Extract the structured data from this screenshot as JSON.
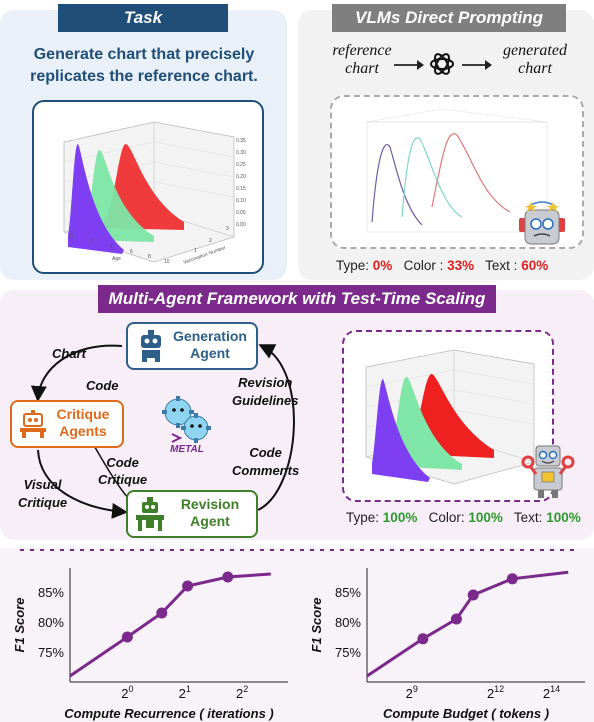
{
  "task": {
    "header": "Task",
    "description_line1": "Generate chart that precisely",
    "description_line2": "replicates the reference chart.",
    "chart_ylabel": "Vaccination Number",
    "chart_xlabel": "Age",
    "chart_zticks": [
      "0.35",
      "0.30",
      "0.25",
      "0.20",
      "0.15",
      "0.10",
      "0.05",
      "0.00"
    ],
    "chart_xticks": [
      "0",
      "2",
      "4",
      "6",
      "8",
      "10"
    ],
    "chart_yticks": [
      "1",
      "2",
      "3"
    ]
  },
  "vlm": {
    "header": "VLMs Direct Prompting",
    "reference_label_line1": "reference",
    "reference_label_line2": "chart",
    "generated_label_line1": "generated",
    "generated_label_line2": "chart",
    "type_label": "Type:",
    "type_value": "0%",
    "color_label": "Color :",
    "color_value": "33%",
    "text_label": "Text :",
    "text_value": "60%"
  },
  "metal": {
    "header": "Multi-Agent Framework with Test-Time Scaling",
    "generation_agent_line1": "Generation",
    "generation_agent_line2": "Agent",
    "critique_agents_line1": "Critique",
    "critique_agents_line2": "Agents",
    "revision_agent_line1": "Revision",
    "revision_agent_line2": "Agent",
    "center_label": "METAL",
    "edge_chart": "Chart",
    "edge_code": "Code",
    "edge_revision_line1": "Revision",
    "edge_revision_line2": "Guidelines",
    "edge_code_critique_line1": "Code",
    "edge_code_critique_line2": "Critique",
    "edge_visual_critique_line1": "Visual",
    "edge_visual_critique_line2": "Critique",
    "edge_code_comments_line1": "Code",
    "edge_code_comments_line2": "Comments",
    "type_label": "Type:",
    "type_value": "100%",
    "color_label": "Color:",
    "color_value": "100%",
    "text_label": "Text:",
    "text_value": "100%"
  },
  "colors": {
    "task_header": "#1f4e79",
    "vlm_header": "#7f7f7f",
    "metal_header": "#7b2a8c",
    "line": "#7b2a8c",
    "generation_border": "#2e5f8a",
    "critique_border": "#e06a1b",
    "revision_border": "#3f7f2a"
  },
  "chart_data": [
    {
      "type": "line",
      "ylabel": "F1 Score",
      "xlabel": "Compute Recurrence ( iterations )",
      "xticks": [
        "2^0",
        "2^1",
        "2^2"
      ],
      "yticks": [
        "75%",
        "80%",
        "85%"
      ],
      "x_log2": [
        -1,
        0,
        0.6,
        1.05,
        1.75,
        2.5
      ],
      "y": [
        71.0,
        77.5,
        81.5,
        86.0,
        87.5,
        88.0
      ],
      "markers": [
        1,
        2,
        3,
        4
      ],
      "ylim": [
        70,
        89
      ]
    },
    {
      "type": "line",
      "ylabel": "F1 Score",
      "xlabel": "Compute Budget ( tokens )",
      "xticks": [
        "2^9",
        "2^12",
        "2^14"
      ],
      "yticks": [
        "75%",
        "80%",
        "85%"
      ],
      "x_log2": [
        7.4,
        9.4,
        10.6,
        11.2,
        12.6,
        14.6
      ],
      "y": [
        71.0,
        77.2,
        80.5,
        84.5,
        87.2,
        88.3
      ],
      "markers": [
        1,
        2,
        3,
        4
      ],
      "ylim": [
        70,
        89
      ]
    }
  ]
}
